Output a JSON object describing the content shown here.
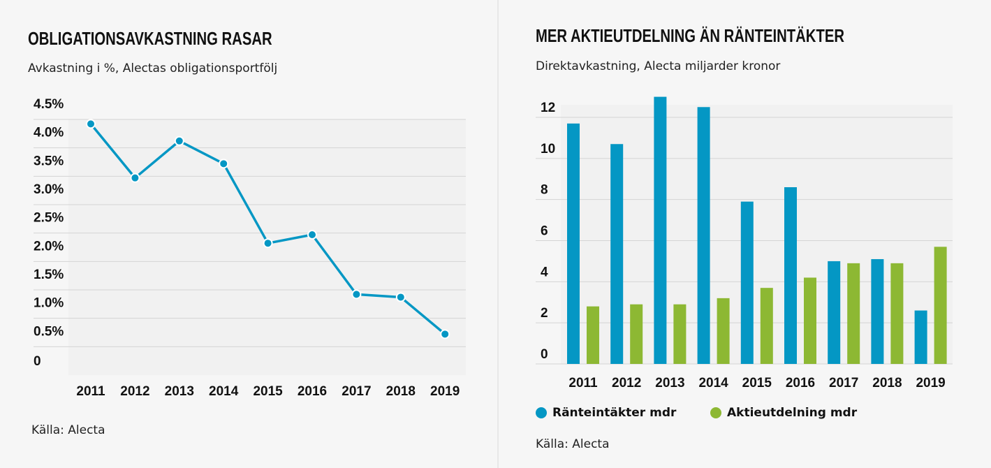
{
  "charts": {
    "left": {
      "title": "OBLIGATIONSAVKASTNING RASAR",
      "subtitle": "Avkastning i %, Alectas obligationsportfölj",
      "source": "Källa: Alecta"
    },
    "right": {
      "title": "MER AKTIEUTDELNING ÄN RÄNTEINTÄKTER",
      "subtitle": "Direktavkastning, Alecta miljarder kronor",
      "source": "Källa: Alecta",
      "legend": [
        "Ränteintäkter mdr",
        "Aktieutdelning mdr"
      ]
    }
  },
  "colors": {
    "blue": "#0497c4",
    "green": "#8db833",
    "grid": "#d4d4d4",
    "plot_bg": "#f1f1f1"
  },
  "chart_data": [
    {
      "type": "line",
      "title": "OBLIGATIONSAVKASTNING RASAR",
      "subtitle": "Avkastning i %, Alectas obligationsportfölj",
      "categories": [
        "2011",
        "2012",
        "2013",
        "2014",
        "2015",
        "2016",
        "2017",
        "2018",
        "2019"
      ],
      "y_ticks": [
        "0",
        "0.5%",
        "1.0%",
        "1.5%",
        "2.0%",
        "2.5%",
        "3.0%",
        "3.5%",
        "4.0%",
        "4.5%"
      ],
      "ylim": [
        0,
        4.5
      ],
      "series": [
        {
          "values": [
            4.2,
            3.25,
            3.9,
            3.5,
            2.1,
            2.25,
            1.2,
            1.15,
            0.5
          ]
        }
      ],
      "grid": true
    },
    {
      "type": "bar",
      "title": "MER AKTIEUTDELNING ÄN RÄNTEINTÄKTER",
      "subtitle": "Direktavkastning, Alecta miljarder kronor",
      "categories": [
        "2011",
        "2012",
        "2013",
        "2014",
        "2015",
        "2016",
        "2017",
        "2018",
        "2019"
      ],
      "y_ticks": [
        "0",
        "2",
        "4",
        "6",
        "8",
        "10",
        "12"
      ],
      "ylim": [
        0,
        13.5
      ],
      "series": [
        {
          "name": "Ränteintäkter mdr",
          "values": [
            11.7,
            10.7,
            13.0,
            12.5,
            7.9,
            8.6,
            5.0,
            5.1,
            2.6
          ]
        },
        {
          "name": "Aktieutdelning mdr",
          "values": [
            2.8,
            2.9,
            2.9,
            3.2,
            3.7,
            4.2,
            4.9,
            4.9,
            5.7
          ]
        }
      ],
      "legend_position": "bottom-left",
      "grid": true
    }
  ]
}
